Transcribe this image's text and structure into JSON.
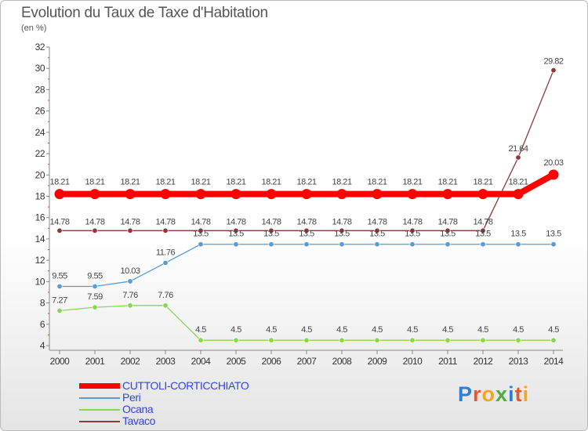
{
  "title": "Evolution du Taux de Taxe d'Habitation",
  "unit_label": "(en %)",
  "logo": {
    "text": [
      "P",
      "r",
      "o",
      "x",
      "i",
      "t",
      "i"
    ],
    "colors": [
      "#2f7fd6",
      "#e7572b",
      "#f2a81c",
      "#4fad3a",
      "#2f7fd6",
      "#e7572b",
      "#f2a81c"
    ]
  },
  "chart_data": {
    "type": "line",
    "title": "Evolution du Taux de Taxe d'Habitation",
    "ylabel": "(en %)",
    "xlabel": "",
    "ylim": [
      4,
      32
    ],
    "yticks": [
      4,
      6,
      8,
      10,
      12,
      14,
      16,
      18,
      20,
      22,
      24,
      26,
      28,
      30,
      32
    ],
    "grid": false,
    "categories": [
      "2000",
      "2001",
      "2002",
      "2003",
      "2004",
      "2005",
      "2006",
      "2007",
      "2008",
      "2009",
      "2010",
      "2011",
      "2012",
      "2013",
      "2014"
    ],
    "series": [
      {
        "name": "CUTTOLI-CORTICCHIATO",
        "color": "#ff0000",
        "values": [
          18.21,
          18.21,
          18.21,
          18.21,
          18.21,
          18.21,
          18.21,
          18.21,
          18.21,
          18.21,
          18.21,
          18.21,
          18.21,
          18.21,
          20.03
        ],
        "labels": [
          "18.21",
          "18.21",
          "18.21",
          "18.21",
          "18.21",
          "18.21",
          "18.21",
          "18.21",
          "18.21",
          "18.21",
          "18.21",
          "18.21",
          "18.21",
          "18.21",
          "20.03"
        ]
      },
      {
        "name": "Peri",
        "color": "#5a9bd4",
        "values": [
          9.55,
          9.55,
          10.03,
          11.76,
          13.5,
          13.5,
          13.5,
          13.5,
          13.5,
          13.5,
          13.5,
          13.5,
          13.5,
          13.5,
          13.5
        ],
        "labels": [
          "9.55",
          "9.55",
          "10.03",
          "11.76",
          "13.5",
          "13.5",
          "13.5",
          "13.5",
          "13.5",
          "13.5",
          "13.5",
          "13.5",
          "13.5",
          "13.5",
          "13.5"
        ]
      },
      {
        "name": "Ocana",
        "color": "#8bd45a",
        "values": [
          7.27,
          7.59,
          7.76,
          7.76,
          4.5,
          4.5,
          4.5,
          4.5,
          4.5,
          4.5,
          4.5,
          4.5,
          4.5,
          4.5,
          4.5
        ],
        "labels": [
          "7.27",
          "7.59",
          "7.76",
          "7.76",
          "4.5",
          "4.5",
          "4.5",
          "4.5",
          "4.5",
          "4.5",
          "4.5",
          "4.5",
          "4.5",
          "4.5",
          "4.5"
        ]
      },
      {
        "name": "Tavaco",
        "color": "#8b3a3a",
        "values": [
          14.78,
          14.78,
          14.78,
          14.78,
          14.78,
          14.78,
          14.78,
          14.78,
          14.78,
          14.78,
          14.78,
          14.78,
          14.78,
          21.64,
          29.82
        ],
        "labels": [
          "14.78",
          "14.78",
          "14.78",
          "14.78",
          "14.78",
          "14.78",
          "14.78",
          "14.78",
          "14.78",
          "14.78",
          "14.78",
          "14.78",
          "14.78",
          "21.64",
          "29.82"
        ]
      }
    ]
  }
}
